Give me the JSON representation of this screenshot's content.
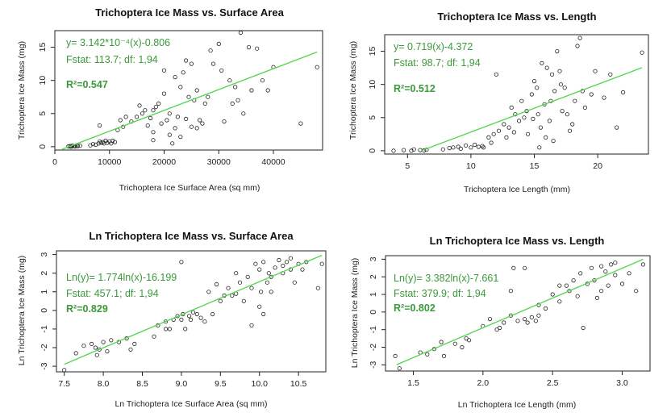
{
  "colors": {
    "fit_line": "#55d855",
    "annotation": "#3a9a3a",
    "points": "#222222",
    "axes": "#222222"
  },
  "chart_data": [
    {
      "type": "scatter",
      "title": "Trichoptera Ice Mass vs. Surface Area",
      "xlabel": "Trichoptera Ice Surface Area (sq mm)",
      "ylabel": "Trichoptera Ice Mass (mg)",
      "xlim": [
        0,
        49000
      ],
      "ylim": [
        -0.5,
        17.5
      ],
      "xticks": [
        0,
        10000,
        20000,
        30000,
        40000
      ],
      "xtick_labels": [
        "0",
        "10000",
        "20000",
        "30000",
        "40000"
      ],
      "yticks": [
        0,
        5,
        10,
        15
      ],
      "ytick_labels": [
        "0",
        "5",
        "10",
        "15"
      ],
      "annotation": {
        "equation": "y= 3.142*10⁻⁴(x)-0.806",
        "fstat": "Fstat: 113.7; df: 1,94",
        "r2": "R²=0.547"
      },
      "fit": {
        "slope": 0.0003142,
        "intercept": -0.806,
        "x_range": [
          1300,
          48000
        ]
      },
      "points": [
        [
          2500,
          0.05
        ],
        [
          2800,
          0.1
        ],
        [
          3000,
          0.0
        ],
        [
          3200,
          0.15
        ],
        [
          3500,
          0.1
        ],
        [
          3700,
          0.05
        ],
        [
          4000,
          0.2
        ],
        [
          4200,
          0.1
        ],
        [
          4600,
          0.15
        ],
        [
          6500,
          0.2
        ],
        [
          7000,
          0.4
        ],
        [
          7500,
          0.3
        ],
        [
          8000,
          0.5
        ],
        [
          8200,
          0.8
        ],
        [
          8500,
          0.6
        ],
        [
          8800,
          0.7
        ],
        [
          9000,
          0.5
        ],
        [
          9300,
          0.9
        ],
        [
          9600,
          0.6
        ],
        [
          10000,
          0.8
        ],
        [
          10300,
          0.5
        ],
        [
          10600,
          0.9
        ],
        [
          11000,
          0.7
        ],
        [
          8200,
          3.2
        ],
        [
          11500,
          2.5
        ],
        [
          12000,
          4.0
        ],
        [
          13000,
          4.5
        ],
        [
          14000,
          3.8
        ],
        [
          15500,
          6.2
        ],
        [
          16000,
          5.0
        ],
        [
          17000,
          3.2
        ],
        [
          17500,
          4.3
        ],
        [
          18000,
          5.5
        ],
        [
          18500,
          6.0
        ],
        [
          18000,
          2.2
        ],
        [
          19000,
          6.5
        ],
        [
          20000,
          11.5
        ],
        [
          20500,
          4.0
        ],
        [
          21000,
          5.0
        ],
        [
          21500,
          0.5
        ],
        [
          22000,
          2.8
        ],
        [
          22500,
          4.5
        ],
        [
          23000,
          1.5
        ],
        [
          23500,
          11.2
        ],
        [
          24000,
          13.0
        ],
        [
          24500,
          7.5
        ],
        [
          25000,
          12.5
        ],
        [
          25500,
          7.0
        ],
        [
          26000,
          8.5
        ],
        [
          26000,
          2.8
        ],
        [
          27000,
          3.5
        ],
        [
          27500,
          6.5
        ],
        [
          28000,
          7.5
        ],
        [
          28500,
          14.5
        ],
        [
          29000,
          12.5
        ],
        [
          30000,
          15.5
        ],
        [
          31000,
          3.8
        ],
        [
          32000,
          10.0
        ],
        [
          33000,
          9.0
        ],
        [
          33500,
          7.0
        ],
        [
          34000,
          17.2
        ],
        [
          35500,
          15.0
        ],
        [
          36000,
          8.5
        ],
        [
          37000,
          14.8
        ],
        [
          38000,
          10.0
        ],
        [
          39000,
          8.5
        ],
        [
          40000,
          12.0
        ],
        [
          45000,
          3.5
        ],
        [
          48000,
          12.0
        ],
        [
          23000,
          9.0
        ],
        [
          19500,
          3.5
        ],
        [
          24000,
          4.2
        ],
        [
          25000,
          3.0
        ],
        [
          22000,
          10.5
        ],
        [
          20000,
          8.0
        ],
        [
          18000,
          1.0
        ],
        [
          15000,
          4.5
        ],
        [
          16500,
          5.5
        ],
        [
          12500,
          3.0
        ],
        [
          30500,
          11.5
        ],
        [
          32500,
          6.5
        ],
        [
          26500,
          4.0
        ],
        [
          34500,
          5.0
        ],
        [
          21000,
          1.8
        ]
      ]
    },
    {
      "type": "scatter",
      "title": "Trichoptera Ice Mass vs. Length",
      "xlabel": "Trichoptera Ice Length (mm)",
      "ylabel": "Trichoptera Ice Mass (mg)",
      "xlim": [
        3.2,
        24
      ],
      "ylim": [
        -0.5,
        17.5
      ],
      "xticks": [
        5,
        10,
        15,
        20
      ],
      "xtick_labels": [
        "5",
        "10",
        "15",
        "20"
      ],
      "yticks": [
        0,
        5,
        10,
        15
      ],
      "ytick_labels": [
        "0",
        "5",
        "10",
        "15"
      ],
      "annotation": {
        "equation": "y= 0.719(x)-4.372",
        "fstat": "Fstat: 98.7; df: 1,94",
        "r2": "R²=0.512"
      },
      "fit": {
        "slope": 0.719,
        "intercept": -4.372,
        "x_range": [
          6.08,
          23.5
        ]
      },
      "points": [
        [
          3.9,
          0.0
        ],
        [
          4.7,
          0.1
        ],
        [
          5.3,
          0.0
        ],
        [
          5.5,
          0.2
        ],
        [
          6.0,
          0.1
        ],
        [
          6.3,
          0.05
        ],
        [
          6.5,
          0.15
        ],
        [
          7.8,
          0.2
        ],
        [
          8.3,
          0.4
        ],
        [
          8.6,
          0.5
        ],
        [
          9.0,
          0.6
        ],
        [
          9.2,
          0.3
        ],
        [
          9.6,
          0.8
        ],
        [
          10.0,
          0.5
        ],
        [
          10.3,
          0.9
        ],
        [
          10.6,
          0.6
        ],
        [
          10.9,
          0.7
        ],
        [
          11.0,
          0.5
        ],
        [
          11.4,
          2.0
        ],
        [
          11.8,
          2.5
        ],
        [
          12.2,
          3.0
        ],
        [
          12.6,
          4.0
        ],
        [
          13.0,
          3.5
        ],
        [
          13.2,
          6.5
        ],
        [
          13.5,
          5.5
        ],
        [
          14.0,
          7.5
        ],
        [
          14.2,
          5.0
        ],
        [
          14.5,
          2.5
        ],
        [
          14.8,
          8.5
        ],
        [
          15.0,
          10.5
        ],
        [
          15.2,
          9.5
        ],
        [
          15.4,
          0.5
        ],
        [
          15.5,
          3.5
        ],
        [
          15.6,
          13.2
        ],
        [
          15.8,
          7.0
        ],
        [
          16.0,
          12.5
        ],
        [
          16.2,
          4.5
        ],
        [
          16.4,
          11.5
        ],
        [
          16.6,
          9.0
        ],
        [
          16.8,
          15.0
        ],
        [
          17.0,
          12.0
        ],
        [
          17.2,
          6.0
        ],
        [
          17.4,
          9.5
        ],
        [
          17.6,
          5.5
        ],
        [
          18.0,
          4.0
        ],
        [
          18.2,
          7.5
        ],
        [
          18.4,
          15.8
        ],
        [
          18.6,
          17.0
        ],
        [
          19.0,
          6.5
        ],
        [
          19.5,
          8.5
        ],
        [
          21.0,
          11.5
        ],
        [
          21.5,
          3.5
        ],
        [
          22.0,
          8.8
        ],
        [
          23.5,
          14.8
        ],
        [
          12.0,
          11.5
        ],
        [
          13.8,
          4.5
        ],
        [
          16.5,
          1.5
        ],
        [
          17.8,
          3.0
        ],
        [
          14.4,
          6.0
        ],
        [
          12.8,
          2.0
        ],
        [
          15.9,
          2.0
        ],
        [
          17.1,
          10.0
        ],
        [
          18.8,
          9.0
        ],
        [
          16.3,
          7.5
        ],
        [
          14.9,
          4.8
        ],
        [
          13.4,
          2.8
        ],
        [
          20.5,
          8.0
        ],
        [
          19.8,
          12.0
        ],
        [
          11.6,
          1.2
        ],
        [
          15.3,
          5.5
        ]
      ]
    },
    {
      "type": "scatter",
      "title": "Ln Trichoptera Ice Mass vs. Surface Area",
      "xlabel": "Ln Trichoptera Ice Surface Area (sq mm)",
      "ylabel": "Ln Trichoptera Ice Mass (mg)",
      "xlim": [
        7.4,
        10.85
      ],
      "ylim": [
        -3.3,
        3.2
      ],
      "xticks": [
        7.5,
        8.0,
        8.5,
        9.0,
        9.5,
        10.0,
        10.5
      ],
      "xtick_labels": [
        "7.5",
        "8.0",
        "8.5",
        "9.0",
        "9.5",
        "10.0",
        "10.5"
      ],
      "yticks": [
        -3,
        -2,
        -1,
        0,
        1,
        2,
        3
      ],
      "ytick_labels": [
        "-3",
        "-2",
        "-1",
        "0",
        "1",
        "2",
        "3"
      ],
      "annotation": {
        "equation": "Ln(y)= 1.774ln(x)-16.199",
        "fstat": "Fstat: 457.1; df: 1,94",
        "r2": "R²=0.829"
      },
      "fit": {
        "slope": 1.774,
        "intercept": -16.199,
        "x_range": [
          7.5,
          10.8
        ]
      },
      "points": [
        [
          7.5,
          -3.2
        ],
        [
          7.65,
          -2.3
        ],
        [
          7.75,
          -1.9
        ],
        [
          7.85,
          -1.8
        ],
        [
          7.9,
          -2.0
        ],
        [
          7.92,
          -2.4
        ],
        [
          7.95,
          -2.1
        ],
        [
          8.0,
          -1.7
        ],
        [
          8.05,
          -2.2
        ],
        [
          8.1,
          -1.6
        ],
        [
          8.2,
          -1.7
        ],
        [
          8.3,
          -1.5
        ],
        [
          8.35,
          -2.1
        ],
        [
          8.4,
          -1.8
        ],
        [
          8.65,
          -1.4
        ],
        [
          8.7,
          -0.8
        ],
        [
          8.8,
          -0.6
        ],
        [
          8.85,
          -1.0
        ],
        [
          8.9,
          -0.5
        ],
        [
          8.95,
          -0.3
        ],
        [
          9.0,
          2.6
        ],
        [
          9.02,
          -0.2
        ],
        [
          9.05,
          -1.0
        ],
        [
          9.1,
          -0.3
        ],
        [
          9.12,
          -0.5
        ],
        [
          9.15,
          -0.1
        ],
        [
          9.2,
          -0.2
        ],
        [
          9.25,
          -0.4
        ],
        [
          9.3,
          -0.6
        ],
        [
          9.35,
          1.0
        ],
        [
          9.4,
          -0.2
        ],
        [
          9.5,
          0.5
        ],
        [
          9.6,
          1.2
        ],
        [
          9.65,
          0.8
        ],
        [
          9.7,
          2.0
        ],
        [
          9.75,
          1.5
        ],
        [
          9.8,
          0.5
        ],
        [
          9.85,
          1.8
        ],
        [
          9.9,
          -0.8
        ],
        [
          9.95,
          2.5
        ],
        [
          10.0,
          2.2
        ],
        [
          10.02,
          1.0
        ],
        [
          10.05,
          2.6
        ],
        [
          10.1,
          1.5
        ],
        [
          10.12,
          2.0
        ],
        [
          10.15,
          1.0
        ],
        [
          10.2,
          2.3
        ],
        [
          10.25,
          2.7
        ],
        [
          10.3,
          2.4
        ],
        [
          10.35,
          2.6
        ],
        [
          10.4,
          2.8
        ],
        [
          10.45,
          1.5
        ],
        [
          10.5,
          2.5
        ],
        [
          10.55,
          2.2
        ],
        [
          10.6,
          2.6
        ],
        [
          10.75,
          1.2
        ],
        [
          10.8,
          2.5
        ],
        [
          10.0,
          0.2
        ],
        [
          10.05,
          -0.2
        ],
        [
          9.55,
          0.8
        ],
        [
          9.0,
          -0.5
        ],
        [
          9.45,
          1.4
        ],
        [
          10.15,
          1.8
        ],
        [
          10.3,
          2.0
        ],
        [
          8.8,
          -1.0
        ],
        [
          9.9,
          1.2
        ],
        [
          10.4,
          2.2
        ],
        [
          9.7,
          0.9
        ]
      ]
    },
    {
      "type": "scatter",
      "title": "Ln Trichoptera Ice Mass vs. Length",
      "xlabel": "Ln Trichoptera Ice Length (mm)",
      "ylabel": "Ln Trichoptera Ice Mass (mg)",
      "xlim": [
        1.3,
        3.2
      ],
      "ylim": [
        -3.35,
        3.2
      ],
      "xticks": [
        1.5,
        2.0,
        2.5,
        3.0
      ],
      "xtick_labels": [
        "1.5",
        "2.0",
        "2.5",
        "3.0"
      ],
      "yticks": [
        -3,
        -2,
        -1,
        0,
        1,
        2,
        3
      ],
      "ytick_labels": [
        "-3",
        "-2",
        "-1",
        "0",
        "1",
        "2",
        "3"
      ],
      "annotation": {
        "equation": "Ln(y)= 3.382ln(x)-7.661",
        "fstat": "Fstat: 379.9; df: 1,94",
        "r2": "R²=0.802"
      },
      "fit": {
        "slope": 3.382,
        "intercept": -7.661,
        "x_range": [
          1.38,
          3.15
        ]
      },
      "points": [
        [
          1.37,
          -2.5
        ],
        [
          1.4,
          -3.2
        ],
        [
          1.55,
          -2.3
        ],
        [
          1.6,
          -2.4
        ],
        [
          1.65,
          -2.1
        ],
        [
          1.7,
          -1.7
        ],
        [
          1.72,
          -2.5
        ],
        [
          1.8,
          -1.8
        ],
        [
          1.85,
          -2.0
        ],
        [
          1.88,
          -1.5
        ],
        [
          1.9,
          -1.6
        ],
        [
          2.05,
          -0.4
        ],
        [
          2.1,
          -1.0
        ],
        [
          2.12,
          -0.9
        ],
        [
          2.15,
          -0.6
        ],
        [
          2.2,
          -0.2
        ],
        [
          2.22,
          2.5
        ],
        [
          2.25,
          -0.5
        ],
        [
          2.3,
          -0.4
        ],
        [
          2.32,
          -0.6
        ],
        [
          2.35,
          -0.3
        ],
        [
          2.38,
          -0.5
        ],
        [
          2.4,
          -0.2
        ],
        [
          2.45,
          0.2
        ],
        [
          2.5,
          1.0
        ],
        [
          2.55,
          0.6
        ],
        [
          2.6,
          1.5
        ],
        [
          2.62,
          1.2
        ],
        [
          2.65,
          1.8
        ],
        [
          2.7,
          2.2
        ],
        [
          2.72,
          -0.9
        ],
        [
          2.75,
          1.6
        ],
        [
          2.78,
          2.5
        ],
        [
          2.8,
          1.8
        ],
        [
          2.82,
          0.8
        ],
        [
          2.85,
          2.6
        ],
        [
          2.88,
          2.3
        ],
        [
          2.9,
          1.5
        ],
        [
          2.92,
          2.7
        ],
        [
          2.95,
          2.8
        ],
        [
          3.0,
          1.6
        ],
        [
          3.05,
          2.2
        ],
        [
          3.1,
          1.2
        ],
        [
          3.15,
          2.7
        ],
        [
          2.3,
          2.5
        ],
        [
          2.2,
          1.2
        ],
        [
          2.0,
          -0.8
        ],
        [
          2.55,
          1.5
        ],
        [
          2.68,
          0.9
        ],
        [
          2.85,
          1.2
        ],
        [
          2.4,
          0.4
        ],
        [
          2.95,
          2.1
        ]
      ]
    }
  ]
}
